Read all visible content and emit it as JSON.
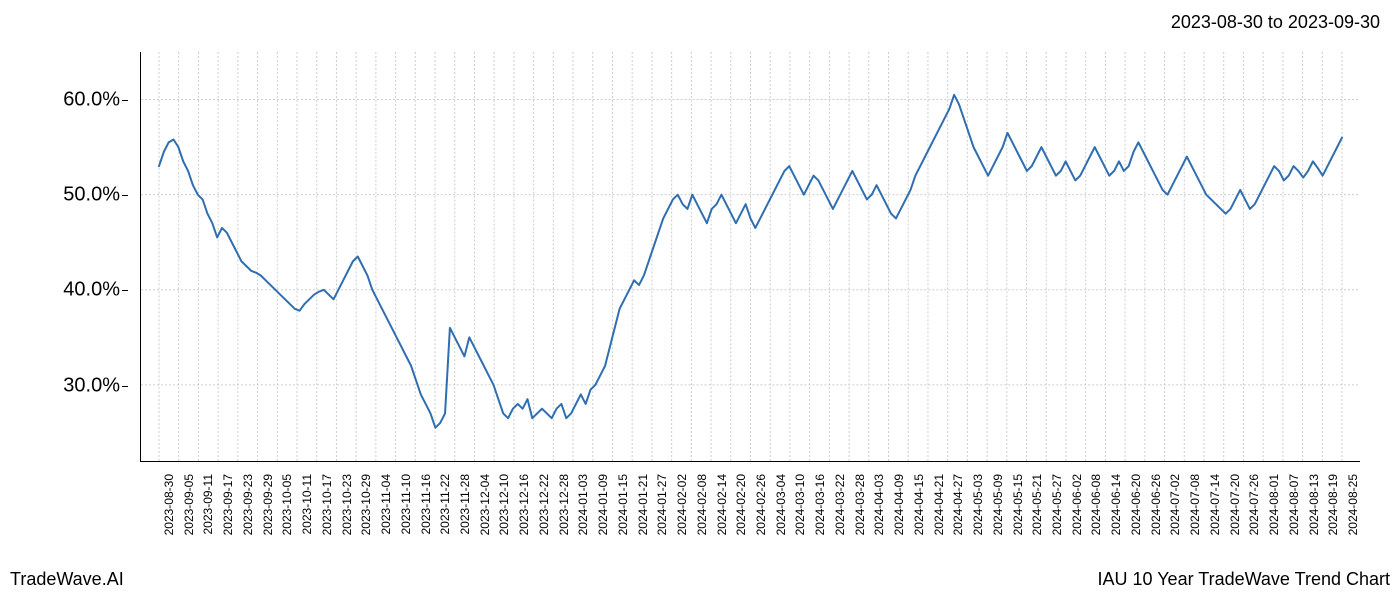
{
  "header": {
    "date_range": "2023-08-30 to 2023-09-30"
  },
  "footer": {
    "left": "TradeWave.AI",
    "right": "IAU 10 Year TradeWave Trend Chart"
  },
  "chart": {
    "type": "line",
    "background_color": "#ffffff",
    "line_color": "#2f6eb0",
    "line_width": 2,
    "grid_color": "#cccccc",
    "grid_dash": "2,2",
    "axis_color": "#000000",
    "highlight_band": {
      "color": "#cde2c7",
      "opacity": 0.55,
      "start_date": "2023-08-30",
      "end_date": "2023-09-30"
    },
    "y_axis": {
      "min": 22,
      "max": 65,
      "ticks": [
        30,
        40,
        50,
        60
      ],
      "tick_labels": [
        "30.0%",
        "40.0%",
        "50.0%",
        "60.0%"
      ],
      "label_fontsize": 20
    },
    "x_axis": {
      "tick_labels": [
        "2023-08-30",
        "2023-09-05",
        "2023-09-11",
        "2023-09-17",
        "2023-09-23",
        "2023-09-29",
        "2023-10-05",
        "2023-10-11",
        "2023-10-17",
        "2023-10-23",
        "2023-10-29",
        "2023-11-04",
        "2023-11-10",
        "2023-11-16",
        "2023-11-22",
        "2023-11-28",
        "2023-12-04",
        "2023-12-10",
        "2023-12-16",
        "2023-12-22",
        "2023-12-28",
        "2024-01-03",
        "2024-01-09",
        "2024-01-15",
        "2024-01-21",
        "2024-01-27",
        "2024-02-02",
        "2024-02-08",
        "2024-02-14",
        "2024-02-20",
        "2024-02-26",
        "2024-03-04",
        "2024-03-10",
        "2024-03-16",
        "2024-03-22",
        "2024-03-28",
        "2024-04-03",
        "2024-04-09",
        "2024-04-15",
        "2024-04-21",
        "2024-04-27",
        "2024-05-03",
        "2024-05-09",
        "2024-05-15",
        "2024-05-21",
        "2024-05-27",
        "2024-06-02",
        "2024-06-08",
        "2024-06-14",
        "2024-06-20",
        "2024-06-26",
        "2024-07-02",
        "2024-07-08",
        "2024-07-14",
        "2024-07-20",
        "2024-07-26",
        "2024-08-01",
        "2024-08-07",
        "2024-08-13",
        "2024-08-19",
        "2024-08-25"
      ],
      "label_fontsize": 12,
      "label_rotation": -90
    },
    "series": {
      "values": [
        53.0,
        54.5,
        55.5,
        55.8,
        55.0,
        53.5,
        52.5,
        51.0,
        50.0,
        49.5,
        48.0,
        47.0,
        45.5,
        46.5,
        46.0,
        45.0,
        44.0,
        43.0,
        42.5,
        42.0,
        41.8,
        41.5,
        41.0,
        40.5,
        40.0,
        39.5,
        39.0,
        38.5,
        38.0,
        37.8,
        38.5,
        39.0,
        39.5,
        39.8,
        40.0,
        39.5,
        39.0,
        40.0,
        41.0,
        42.0,
        43.0,
        43.5,
        42.5,
        41.5,
        40.0,
        39.0,
        38.0,
        37.0,
        36.0,
        35.0,
        34.0,
        33.0,
        32.0,
        30.5,
        29.0,
        28.0,
        27.0,
        25.5,
        26.0,
        27.0,
        36.0,
        35.0,
        34.0,
        33.0,
        35.0,
        34.0,
        33.0,
        32.0,
        31.0,
        30.0,
        28.5,
        27.0,
        26.5,
        27.5,
        28.0,
        27.5,
        28.5,
        26.5,
        27.0,
        27.5,
        27.0,
        26.5,
        27.5,
        28.0,
        26.5,
        27.0,
        28.0,
        29.0,
        28.0,
        29.5,
        30.0,
        31.0,
        32.0,
        34.0,
        36.0,
        38.0,
        39.0,
        40.0,
        41.0,
        40.5,
        41.5,
        43.0,
        44.5,
        46.0,
        47.5,
        48.5,
        49.5,
        50.0,
        49.0,
        48.5,
        50.0,
        49.0,
        48.0,
        47.0,
        48.5,
        49.0,
        50.0,
        49.0,
        48.0,
        47.0,
        48.0,
        49.0,
        47.5,
        46.5,
        47.5,
        48.5,
        49.5,
        50.5,
        51.5,
        52.5,
        53.0,
        52.0,
        51.0,
        50.0,
        51.0,
        52.0,
        51.5,
        50.5,
        49.5,
        48.5,
        49.5,
        50.5,
        51.5,
        52.5,
        51.5,
        50.5,
        49.5,
        50.0,
        51.0,
        50.0,
        49.0,
        48.0,
        47.5,
        48.5,
        49.5,
        50.5,
        52.0,
        53.0,
        54.0,
        55.0,
        56.0,
        57.0,
        58.0,
        59.0,
        60.5,
        59.5,
        58.0,
        56.5,
        55.0,
        54.0,
        53.0,
        52.0,
        53.0,
        54.0,
        55.0,
        56.5,
        55.5,
        54.5,
        53.5,
        52.5,
        53.0,
        54.0,
        55.0,
        54.0,
        53.0,
        52.0,
        52.5,
        53.5,
        52.5,
        51.5,
        52.0,
        53.0,
        54.0,
        55.0,
        54.0,
        53.0,
        52.0,
        52.5,
        53.5,
        52.5,
        53.0,
        54.5,
        55.5,
        54.5,
        53.5,
        52.5,
        51.5,
        50.5,
        50.0,
        51.0,
        52.0,
        53.0,
        54.0,
        53.0,
        52.0,
        51.0,
        50.0,
        49.5,
        49.0,
        48.5,
        48.0,
        48.5,
        49.5,
        50.5,
        49.5,
        48.5,
        49.0,
        50.0,
        51.0,
        52.0,
        53.0,
        52.5,
        51.5,
        52.0,
        53.0,
        52.5,
        51.8,
        52.5,
        53.5,
        52.8,
        52.0,
        53.0,
        54.0,
        55.0,
        56.0
      ]
    }
  }
}
